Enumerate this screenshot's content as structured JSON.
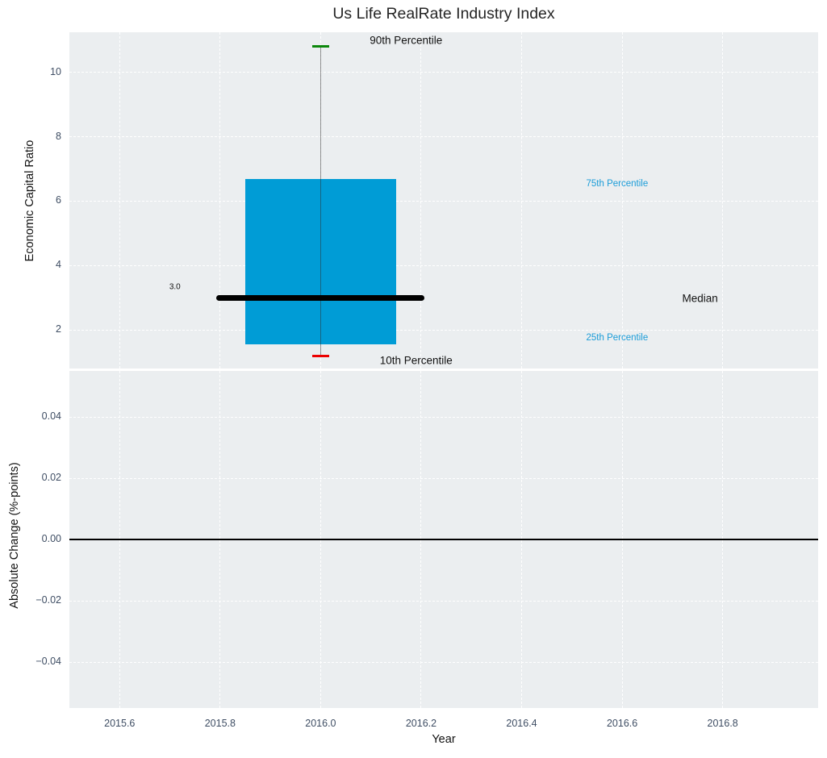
{
  "styles": {
    "plot_bg": "#ebeef0",
    "grid_color": "#ffffff",
    "tick_label_color": "#3e4d63",
    "title_color": "#262626",
    "axis_title_color": "#111111",
    "percentile_label_blue": "#1a9cd8"
  },
  "chart_data": {
    "type": "boxplot",
    "title": "Us Life RealRate Industry Index",
    "xlabel": "Year",
    "x_range": [
      2015.5,
      2016.99
    ],
    "x_ticks": [
      {
        "v": 2015.6,
        "label": "2015.6"
      },
      {
        "v": 2015.8,
        "label": "2015.8"
      },
      {
        "v": 2016.0,
        "label": "2016.0"
      },
      {
        "v": 2016.2,
        "label": "2016.2"
      },
      {
        "v": 2016.4,
        "label": "2016.4"
      },
      {
        "v": 2016.6,
        "label": "2016.6"
      },
      {
        "v": 2016.8,
        "label": "2016.8"
      }
    ],
    "grid": {
      "show": true,
      "style": "dashed",
      "color": "#ffffff"
    },
    "legend": {
      "show": false
    },
    "subplots": [
      {
        "name": "economic-capital-ratio",
        "ylabel": "Economic Capital Ratio",
        "y_range": [
          0.8,
          11.25
        ],
        "y_ticks": [
          {
            "v": 2,
            "label": "2"
          },
          {
            "v": 4,
            "label": "4"
          },
          {
            "v": 6,
            "label": "6"
          },
          {
            "v": 8,
            "label": "8"
          },
          {
            "v": 10,
            "label": "10"
          }
        ],
        "box": {
          "x": 2016.0,
          "p10": 1.2,
          "p25": 1.55,
          "median": 3.0,
          "p75": 6.7,
          "p90": 10.8,
          "median_label": "3.0",
          "box_halfwidth": 0.15,
          "median_halfwidth": 0.207,
          "cap_halfwidth": 0.017,
          "box_color": "#009cd6",
          "median_color": "#000000",
          "whisker_color": "rgba(45,45,45,0.5)",
          "p90_cap_color": "#0b870b",
          "p10_cap_color": "#ec0000"
        },
        "annotations": [
          {
            "id": "90th-percentile",
            "text": "90th Percentile",
            "x": 2016.17,
            "y": 11.0,
            "color": "#111111",
            "size": 13.5
          },
          {
            "id": "10th-percentile",
            "text": "10th Percentile",
            "x": 2016.19,
            "y": 1.05,
            "color": "#111111",
            "size": 13.5
          },
          {
            "id": "75th-percentile",
            "text": "75th Percentile",
            "x": 2016.59,
            "y": 6.55,
            "color": "#1a9cd8",
            "size": 11.5
          },
          {
            "id": "25th-percentile",
            "text": "25th Percentile",
            "x": 2016.59,
            "y": 1.75,
            "color": "#1a9cd8",
            "size": 11.5
          },
          {
            "id": "median",
            "text": "Median",
            "x": 2016.755,
            "y": 2.98,
            "color": "#111111",
            "size": 13.5
          },
          {
            "id": "median-value",
            "text": "3.0",
            "x": 2015.71,
            "y": 3.33,
            "color": "#111111",
            "size": 10
          }
        ]
      },
      {
        "name": "absolute-change",
        "ylabel": "Absolute Change (%-points)",
        "y_range": [
          -0.055,
          0.055
        ],
        "y_ticks": [
          {
            "v": 0.04,
            "label": "0.04"
          },
          {
            "v": 0.02,
            "label": "0.02"
          },
          {
            "v": 0.0,
            "label": "0.00"
          },
          {
            "v": -0.02,
            "label": "−0.02"
          },
          {
            "v": -0.04,
            "label": "−0.04"
          }
        ],
        "zero_line": {
          "y": 0.0,
          "color": "#000000"
        }
      }
    ]
  }
}
